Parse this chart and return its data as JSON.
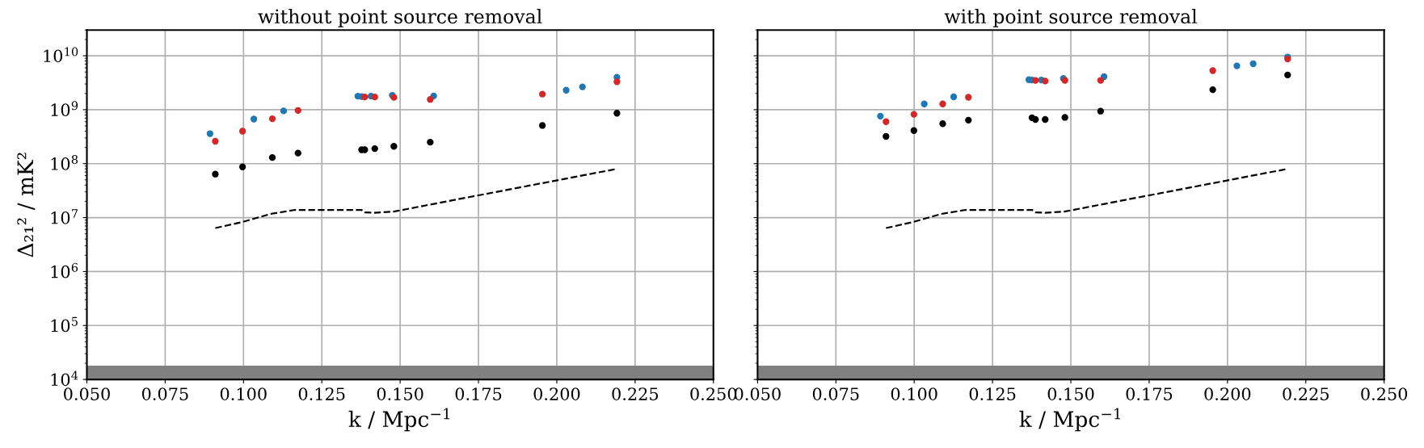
{
  "chart_data": [
    {
      "type": "scatter",
      "title": "without point source removal",
      "xlabel": "k / Mpc$^{−1}$",
      "ylabel": "Δ₂₁² / mK²",
      "log": "y",
      "grid": true,
      "marker": "circle",
      "xlim": [
        0.05,
        0.25
      ],
      "xticks": [
        {
          "value": 0.05,
          "label": "0.050"
        },
        {
          "value": 0.075,
          "label": "0.075"
        },
        {
          "value": 0.1,
          "label": "0.100"
        },
        {
          "value": 0.125,
          "label": "0.125"
        },
        {
          "value": 0.15,
          "label": "0.150"
        },
        {
          "value": 0.175,
          "label": "0.175"
        },
        {
          "value": 0.2,
          "label": "0.200"
        },
        {
          "value": 0.225,
          "label": "0.225"
        },
        {
          "value": 0.25,
          "label": "0.250"
        }
      ],
      "ylim": [
        10000,
        30000000000
      ],
      "yticks": [
        {
          "value": 10000,
          "label": "10$^{4}$"
        },
        {
          "value": 100000,
          "label": "10$^{5}$"
        },
        {
          "value": 1000000,
          "label": "10$^{6}$"
        },
        {
          "value": 10000000,
          "label": "10$^{7}$"
        },
        {
          "value": 100000000,
          "label": "10$^{8}$"
        },
        {
          "value": 1000000000,
          "label": "10$^{9}$"
        },
        {
          "value": 10000000000,
          "label": "10$^{10}$"
        }
      ],
      "bands": [
        {
          "axis": "y",
          "from": 10000,
          "to": 18000,
          "color": "#808080"
        }
      ],
      "series": [
        {
          "color": "#1f77b4",
          "x": [
            0.0893,
            0.1033,
            0.1128,
            0.1365,
            0.1377,
            0.1407,
            0.1475,
            0.1607,
            0.203,
            0.2082,
            0.2192
          ],
          "values": [
            360000000.0,
            670000000.0,
            950000000.0,
            1780000000.0,
            1750000000.0,
            1780000000.0,
            1850000000.0,
            1800000000.0,
            2300000000.0,
            2650000000.0,
            4000000000.0
          ]
        },
        {
          "color": "#d62728",
          "x": [
            0.091,
            0.0997,
            0.1092,
            0.1174,
            0.1387,
            0.1419,
            0.148,
            0.1596,
            0.1954,
            0.2192
          ],
          "values": [
            260000000.0,
            400000000.0,
            680000000.0,
            970000000.0,
            1720000000.0,
            1720000000.0,
            1690000000.0,
            1550000000.0,
            1940000000.0,
            3300000000.0
          ]
        },
        {
          "color": "#000000",
          "x": [
            0.091,
            0.0997,
            0.1092,
            0.1174,
            0.1377,
            0.1387,
            0.1419,
            0.148,
            0.1596,
            0.1954,
            0.2192
          ],
          "values": [
            64000000.0,
            87000000.0,
            130000000.0,
            157000000.0,
            181000000.0,
            181000000.0,
            190000000.0,
            210000000.0,
            250000000.0,
            510000000.0,
            860000000.0
          ]
        },
        {
          "type": "line",
          "line_style": "dashed",
          "marker": "none",
          "color": "#000000",
          "x": [
            0.091,
            0.0997,
            0.1086,
            0.1165,
            0.1377,
            0.1387,
            0.1416,
            0.1479,
            0.1597,
            0.2192
          ],
          "values": [
            6400000.0,
            8300000.0,
            11700000.0,
            13900000.0,
            13900000.0,
            12500000.0,
            12300000.0,
            12900000.0,
            17500000.0,
            80000000.0
          ]
        }
      ]
    },
    {
      "type": "scatter",
      "title": "with point source removal",
      "xlabel": "k / Mpc$^{−1}$",
      "log": "y",
      "grid": true,
      "marker": "circle",
      "tick_labels": "x",
      "xlim": [
        0.05,
        0.25
      ],
      "xticks": [
        {
          "value": 0.05,
          "label": "0.050"
        },
        {
          "value": 0.075,
          "label": "0.075"
        },
        {
          "value": 0.1,
          "label": "0.100"
        },
        {
          "value": 0.125,
          "label": "0.125"
        },
        {
          "value": 0.15,
          "label": "0.150"
        },
        {
          "value": 0.175,
          "label": "0.175"
        },
        {
          "value": 0.2,
          "label": "0.200"
        },
        {
          "value": 0.225,
          "label": "0.225"
        },
        {
          "value": 0.25,
          "label": "0.250"
        }
      ],
      "ylim": [
        10000,
        30000000000
      ],
      "bands": [
        {
          "axis": "y",
          "from": 10000,
          "to": 18000,
          "color": "#808080"
        }
      ],
      "yticks": [
        {
          "value": 10000,
          "label": null
        },
        {
          "value": 100000,
          "label": null
        },
        {
          "value": 1000000,
          "label": null
        },
        {
          "value": 10000000,
          "label": null
        },
        {
          "value": 100000000,
          "label": null
        },
        {
          "value": 1000000000,
          "label": null
        },
        {
          "value": 10000000000,
          "label": null
        }
      ],
      "series": [
        {
          "color": "#1f77b4",
          "x": [
            0.0892,
            0.1032,
            0.1126,
            0.1366,
            0.1376,
            0.1406,
            0.1476,
            0.1606,
            0.203,
            0.2082,
            0.2192
          ],
          "values": [
            760000000.0,
            1280000000.0,
            1730000000.0,
            3600000000.0,
            3550000000.0,
            3550000000.0,
            3800000000.0,
            4100000000.0,
            6500000000.0,
            7100000000.0,
            9500000000.0
          ]
        },
        {
          "color": "#d62728",
          "x": [
            0.091,
            0.0999,
            0.1091,
            0.1173,
            0.1387,
            0.1418,
            0.1481,
            0.1595,
            0.1953,
            0.2192
          ],
          "values": [
            600000000.0,
            820000000.0,
            1280000000.0,
            1700000000.0,
            3500000000.0,
            3400000000.0,
            3500000000.0,
            3500000000.0,
            5300000000.0,
            8700000000.0
          ]
        },
        {
          "color": "#000000",
          "x": [
            0.091,
            0.0999,
            0.1091,
            0.1173,
            0.1376,
            0.1387,
            0.1418,
            0.1481,
            0.1595,
            0.1953,
            0.2192
          ],
          "values": [
            320000000.0,
            410000000.0,
            550000000.0,
            640000000.0,
            710000000.0,
            660000000.0,
            660000000.0,
            720000000.0,
            940000000.0,
            2350000000.0,
            4400000000.0
          ]
        },
        {
          "type": "line",
          "line_style": "dashed",
          "marker": "none",
          "color": "#000000",
          "x": [
            0.091,
            0.0997,
            0.1086,
            0.1165,
            0.1377,
            0.1387,
            0.1416,
            0.1479,
            0.1597,
            0.2192
          ],
          "values": [
            6400000.0,
            8300000.0,
            11700000.0,
            13900000.0,
            13900000.0,
            12500000.0,
            12300000.0,
            12900000.0,
            17500000.0,
            80000000.0
          ]
        }
      ]
    }
  ]
}
